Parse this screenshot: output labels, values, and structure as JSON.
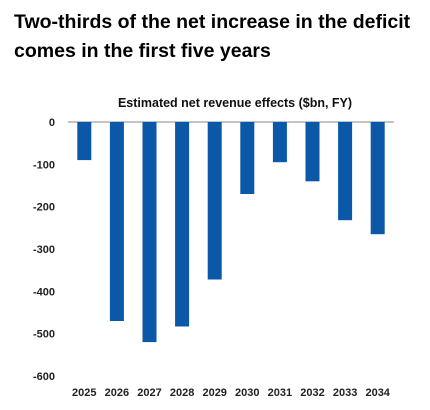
{
  "headline": "Two-thirds of the net increase in the deficit comes in the first five years",
  "chart_data": {
    "type": "bar",
    "title": "Estimated net revenue effects ($bn, FY)",
    "categories": [
      "2025",
      "2026",
      "2027",
      "2028",
      "2029",
      "2030",
      "2031",
      "2032",
      "2033",
      "2034"
    ],
    "values": [
      -90,
      -470,
      -520,
      -483,
      -372,
      -170,
      -95,
      -140,
      -232,
      -265
    ],
    "ylim": [
      -600,
      0
    ],
    "yticks": [
      0,
      -100,
      -200,
      -300,
      -400,
      -500,
      -600
    ],
    "grid": false,
    "bar_color": "#0b57a8"
  }
}
